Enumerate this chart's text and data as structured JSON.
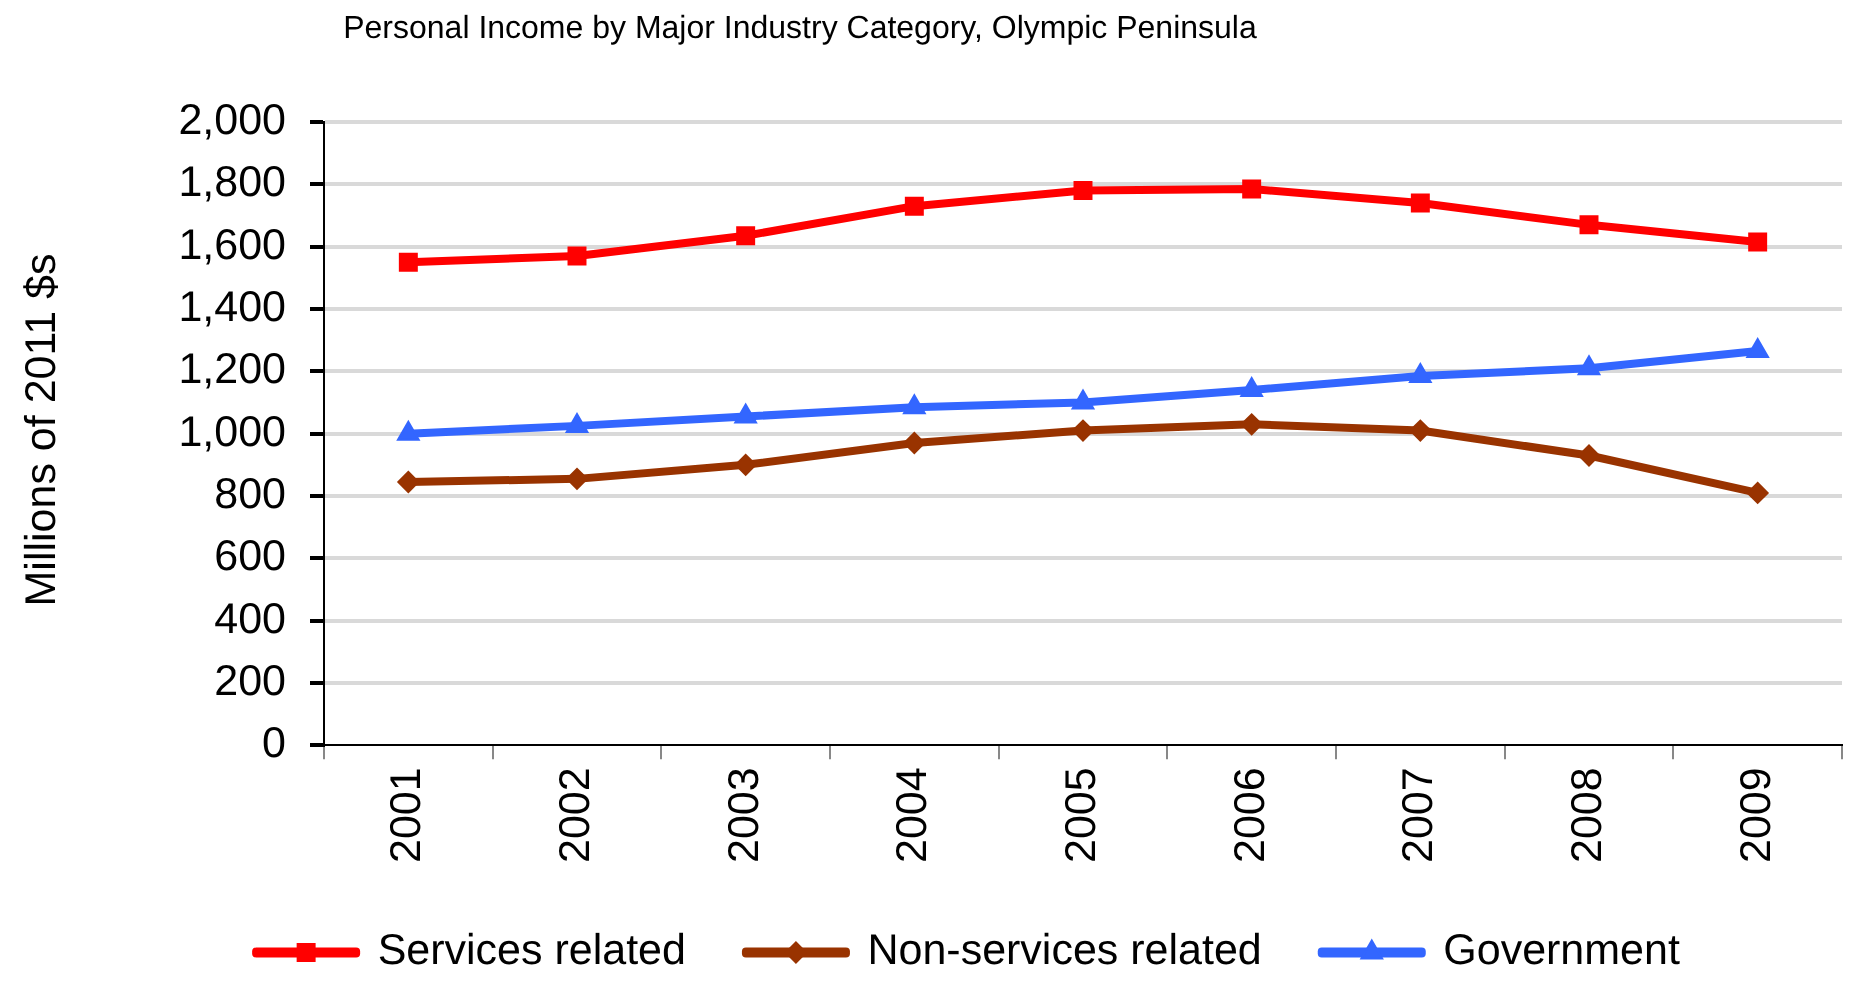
{
  "chart_data": {
    "type": "line",
    "title": "Personal Income by Major Industry Category, Olympic Peninsula",
    "ylabel": "Millions of 2011 $s",
    "categories": [
      "2001",
      "2002",
      "2003",
      "2004",
      "2005",
      "2006",
      "2007",
      "2008",
      "2009"
    ],
    "series": [
      {
        "name": "Services related",
        "color": "#ff0000",
        "marker": "square",
        "values": [
          1550,
          1570,
          1635,
          1730,
          1780,
          1785,
          1740,
          1670,
          1615
        ]
      },
      {
        "name": "Non-services related",
        "color": "#993300",
        "marker": "diamond",
        "values": [
          845,
          855,
          900,
          970,
          1010,
          1030,
          1010,
          930,
          810
        ]
      },
      {
        "name": "Government",
        "color": "#3366ff",
        "marker": "triangle",
        "values": [
          1000,
          1025,
          1055,
          1085,
          1100,
          1140,
          1185,
          1210,
          1265
        ]
      }
    ],
    "ylim": [
      0,
      2000
    ],
    "yticks": [
      0,
      200,
      400,
      600,
      800,
      {
        "value": 1000,
        "label": "1,000"
      },
      {
        "value": 1200,
        "label": "1,200"
      },
      {
        "value": 1400,
        "label": "1,400"
      },
      {
        "value": 1600,
        "label": "1,600"
      },
      {
        "value": 1800,
        "label": "1,800"
      },
      {
        "value": 2000,
        "label": "2,000"
      }
    ],
    "grid": "y",
    "legend": "bottom",
    "line_style": "solid"
  }
}
